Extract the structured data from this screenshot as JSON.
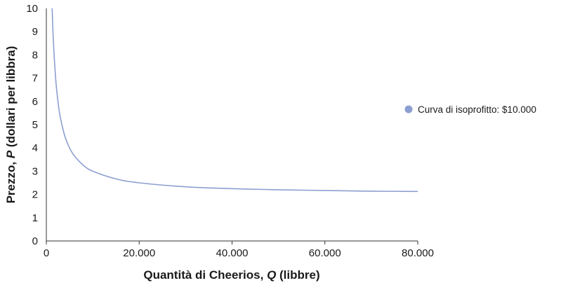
{
  "chart_data": {
    "type": "line",
    "xlabel_parts": [
      "Quantità di Cheerios, ",
      "Q",
      " (libbre)"
    ],
    "ylabel_parts": [
      "Prezzo, ",
      "P",
      " (dollari per libbra)"
    ],
    "xlim": [
      0,
      80000
    ],
    "ylim": [
      0,
      10
    ],
    "x_ticks": [
      0,
      20000,
      40000,
      60000,
      80000
    ],
    "x_tick_labels": [
      "0",
      "20.000",
      "40.000",
      "60.000",
      "80.000"
    ],
    "y_ticks": [
      0,
      1,
      2,
      3,
      4,
      5,
      6,
      7,
      8,
      9,
      10
    ],
    "y_tick_labels": [
      "0",
      "1",
      "2",
      "3",
      "4",
      "5",
      "6",
      "7",
      "8",
      "9",
      "10"
    ],
    "grid": false,
    "legend_position": "right",
    "series": [
      {
        "name": "Curva di isoprofitto: $10.000",
        "color": "#8d9fd1",
        "x": [
          1250,
          1500,
          2000,
          2500,
          3000,
          4000,
          5000,
          6000,
          8000,
          10000,
          15000,
          20000,
          30000,
          40000,
          50000,
          60000,
          70000,
          80000
        ],
        "y": [
          10.0,
          8.67,
          7.0,
          6.0,
          5.33,
          4.5,
          4.0,
          3.67,
          3.25,
          3.0,
          2.67,
          2.5,
          2.33,
          2.25,
          2.2,
          2.17,
          2.14,
          2.13
        ]
      }
    ]
  }
}
